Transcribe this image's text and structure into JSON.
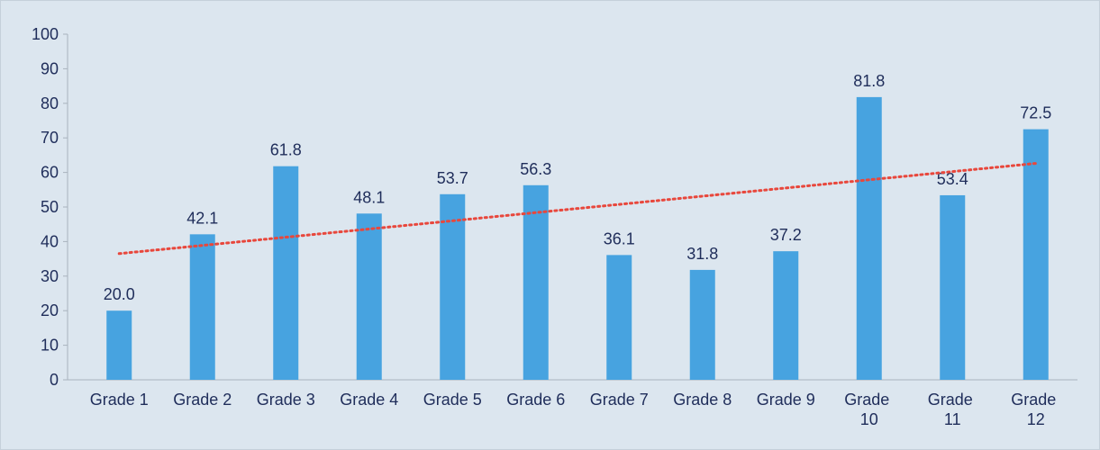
{
  "chart_data": {
    "type": "bar",
    "categories": [
      "Grade 1",
      "Grade 2",
      "Grade 3",
      "Grade 4",
      "Grade 5",
      "Grade 6",
      "Grade 7",
      "Grade 8",
      "Grade 9",
      "Grade 10",
      "Grade 11",
      "Grade 12"
    ],
    "values": [
      20.0,
      42.1,
      61.8,
      48.1,
      53.7,
      56.3,
      36.1,
      31.8,
      37.2,
      81.8,
      53.4,
      72.5
    ],
    "value_labels": [
      "20.0",
      "42.1",
      "61.8",
      "48.1",
      "53.7",
      "56.3",
      "36.1",
      "31.8",
      "37.2",
      "81.8",
      "53.4",
      "72.5"
    ],
    "color": "#47a3e0",
    "trendline": {
      "type": "linear",
      "color": "#e8473c"
    },
    "ylim": [
      0,
      100
    ],
    "yticks": [
      0,
      10,
      20,
      30,
      40,
      50,
      60,
      70,
      80,
      90,
      100
    ],
    "grid": false
  }
}
